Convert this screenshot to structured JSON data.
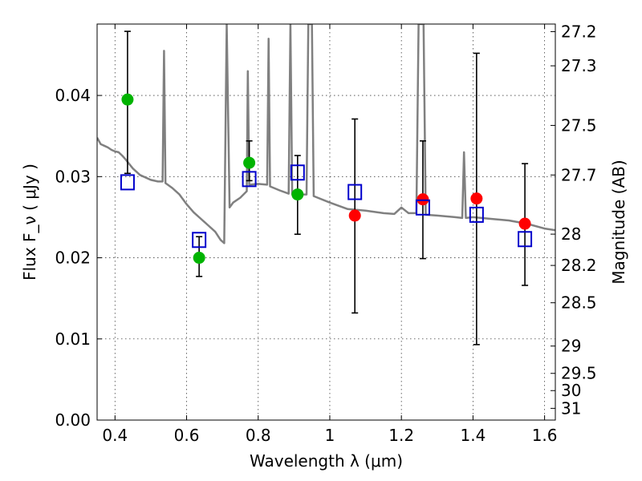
{
  "chart_data": {
    "type": "scatter",
    "title": "",
    "xlabel": "Wavelength  λ (μm)",
    "ylabel": "Flux  F_ν  ( μJy )",
    "ylabel_right": "Magnitude (AB)",
    "xlim": [
      0.35,
      1.63
    ],
    "ylim": [
      0.0,
      0.0488
    ],
    "grid": true,
    "x_ticks": [
      {
        "value": 0.4,
        "label": "0.4"
      },
      {
        "value": 0.6,
        "label": "0.6"
      },
      {
        "value": 0.8,
        "label": "0.8"
      },
      {
        "value": 1.0,
        "label": "1"
      },
      {
        "value": 1.2,
        "label": "1.2"
      },
      {
        "value": 1.4,
        "label": "1.4"
      },
      {
        "value": 1.6,
        "label": "1.6"
      }
    ],
    "y_ticks": [
      {
        "value": 0.0,
        "label": "0.00"
      },
      {
        "value": 0.01,
        "label": "0.01"
      },
      {
        "value": 0.02,
        "label": "0.02"
      },
      {
        "value": 0.03,
        "label": "0.03"
      },
      {
        "value": 0.04,
        "label": "0.04"
      }
    ],
    "right_ticks": [
      {
        "mag": 27.2,
        "label": "27.2"
      },
      {
        "mag": 27.3,
        "label": "27.3"
      },
      {
        "mag": 27.5,
        "label": "27.5"
      },
      {
        "mag": 27.7,
        "label": "27.7"
      },
      {
        "mag": 28.0,
        "label": "28"
      },
      {
        "mag": 28.2,
        "label": "28.2"
      },
      {
        "mag": 28.5,
        "label": "28.5"
      },
      {
        "mag": 29.0,
        "label": "29"
      },
      {
        "mag": 29.5,
        "label": "29.5"
      },
      {
        "mag": 30.0,
        "label": "30"
      },
      {
        "mag": 31.0,
        "label": "31"
      }
    ],
    "series": [
      {
        "kind": "line",
        "color": "#808080",
        "points": [
          [
            0.35,
            0.0348
          ],
          [
            0.36,
            0.034
          ],
          [
            0.37,
            0.0338
          ],
          [
            0.38,
            0.0336
          ],
          [
            0.39,
            0.0333
          ],
          [
            0.4,
            0.0331
          ],
          [
            0.41,
            0.033
          ],
          [
            0.42,
            0.0326
          ],
          [
            0.43,
            0.0321
          ],
          [
            0.45,
            0.031
          ],
          [
            0.47,
            0.0302
          ],
          [
            0.5,
            0.0296
          ],
          [
            0.52,
            0.0294
          ],
          [
            0.533,
            0.0294
          ],
          [
            0.537,
            0.0455
          ],
          [
            0.541,
            0.0292
          ],
          [
            0.56,
            0.0286
          ],
          [
            0.58,
            0.0278
          ],
          [
            0.6,
            0.0266
          ],
          [
            0.62,
            0.0256
          ],
          [
            0.64,
            0.0248
          ],
          [
            0.66,
            0.024
          ],
          [
            0.68,
            0.0232
          ],
          [
            0.695,
            0.0222
          ],
          [
            0.705,
            0.0218
          ],
          [
            0.712,
            0.0488
          ],
          [
            0.72,
            0.0262
          ],
          [
            0.73,
            0.0268
          ],
          [
            0.75,
            0.0274
          ],
          [
            0.768,
            0.0282
          ],
          [
            0.771,
            0.043
          ],
          [
            0.775,
            0.029
          ],
          [
            0.8,
            0.0291
          ],
          [
            0.825,
            0.029
          ],
          [
            0.829,
            0.047
          ],
          [
            0.833,
            0.0288
          ],
          [
            0.86,
            0.0283
          ],
          [
            0.885,
            0.0279
          ],
          [
            0.89,
            0.0488
          ],
          [
            0.895,
            0.0278
          ],
          [
            0.935,
            0.0278
          ],
          [
            0.94,
            0.0488
          ],
          [
            0.95,
            0.0488
          ],
          [
            0.955,
            0.0276
          ],
          [
            1.0,
            0.0268
          ],
          [
            1.05,
            0.026
          ],
          [
            1.1,
            0.0258
          ],
          [
            1.15,
            0.0255
          ],
          [
            1.18,
            0.0254
          ],
          [
            1.2,
            0.0262
          ],
          [
            1.22,
            0.0255
          ],
          [
            1.242,
            0.0255
          ],
          [
            1.248,
            0.0488
          ],
          [
            1.262,
            0.0488
          ],
          [
            1.268,
            0.0253
          ],
          [
            1.3,
            0.0252
          ],
          [
            1.35,
            0.025
          ],
          [
            1.37,
            0.0249
          ],
          [
            1.375,
            0.033
          ],
          [
            1.38,
            0.0249
          ],
          [
            1.4,
            0.025
          ],
          [
            1.45,
            0.0248
          ],
          [
            1.5,
            0.0246
          ],
          [
            1.55,
            0.0242
          ],
          [
            1.6,
            0.0236
          ],
          [
            1.63,
            0.0234
          ]
        ]
      },
      {
        "kind": "errorbar",
        "color": "#000000",
        "bars": [
          [
            0.435,
            0.0304,
            0.0479
          ],
          [
            0.635,
            0.0177,
            0.0226
          ],
          [
            0.775,
            0.0295,
            0.0344
          ],
          [
            0.91,
            0.0229,
            0.0326
          ],
          [
            1.07,
            0.0132,
            0.0371
          ],
          [
            1.26,
            0.0199,
            0.0344
          ],
          [
            1.41,
            0.0093,
            0.0452
          ],
          [
            1.545,
            0.0166,
            0.0316
          ]
        ]
      },
      {
        "kind": "circle",
        "color": "#00b300",
        "points": [
          [
            0.435,
            0.0395
          ],
          [
            0.635,
            0.02
          ],
          [
            0.775,
            0.0317
          ],
          [
            0.91,
            0.0278
          ]
        ]
      },
      {
        "kind": "circle",
        "color": "#ff0000",
        "points": [
          [
            1.07,
            0.0252
          ],
          [
            1.26,
            0.0272
          ],
          [
            1.41,
            0.0273
          ],
          [
            1.545,
            0.0242
          ]
        ]
      },
      {
        "kind": "square",
        "color": "#0000cc",
        "points": [
          [
            0.435,
            0.0293
          ],
          [
            0.635,
            0.0222
          ],
          [
            0.775,
            0.0297
          ],
          [
            0.91,
            0.0305
          ],
          [
            1.07,
            0.0281
          ],
          [
            1.26,
            0.0262
          ],
          [
            1.41,
            0.0253
          ],
          [
            1.545,
            0.0223
          ]
        ]
      }
    ]
  }
}
